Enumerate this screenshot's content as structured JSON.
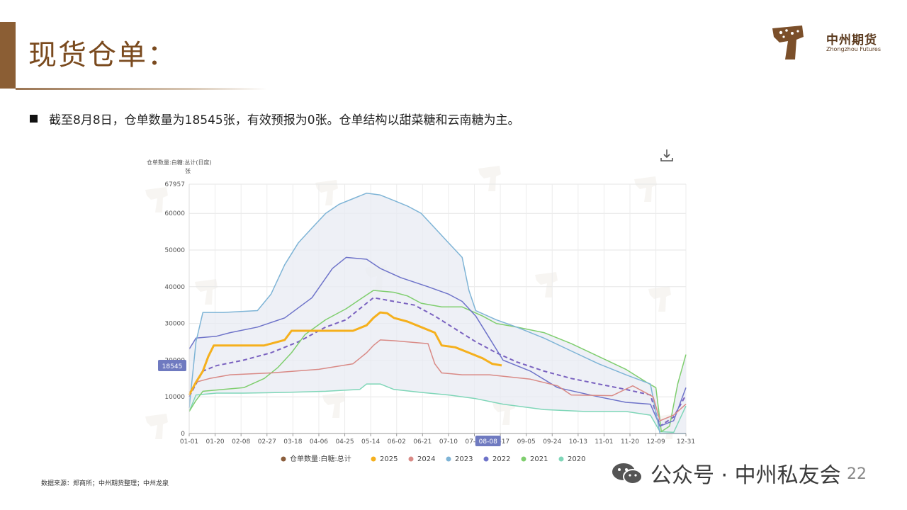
{
  "header": {
    "title": "现货仓单：",
    "logo_cn": "中州期货",
    "logo_en": "Zhongzhou Futures"
  },
  "summary": {
    "text": "截至8月8日，仓单数量为18545张，有效预报为0张。仓单结构以甜菜糖和云南糖为主。"
  },
  "footer": {
    "source": "数据来源：郑商所；中州期货整理；中州龙泉",
    "watermark": "公众号 · 中州私友会",
    "page_number": "22"
  },
  "chart_data": {
    "type": "line",
    "title": "仓单数量:白糖:总计(日度)",
    "ylabel": "张",
    "ylim": [
      0,
      67957
    ],
    "yticks": [
      0,
      10000,
      20000,
      30000,
      40000,
      50000,
      60000,
      67957
    ],
    "xticks": [
      "01-01",
      "01-20",
      "02-08",
      "02-27",
      "03-18",
      "04-06",
      "04-25",
      "05-14",
      "06-02",
      "06-21",
      "07-10",
      "07-29",
      "08-17",
      "09-05",
      "09-24",
      "10-13",
      "11-01",
      "11-20",
      "12-09",
      "12-31"
    ],
    "x_highlight": "08-08",
    "y_highlight": 18545,
    "x_domain_days": [
      0,
      364
    ],
    "legend_position": "bottom",
    "legend_label": "仓单数量:白糖:总计",
    "band": {
      "color": "#e8ebf3"
    },
    "series": [
      {
        "name": "2025",
        "color": "#f5b01d",
        "width": 3,
        "dash": "",
        "points": [
          [
            0,
            10500
          ],
          [
            5,
            14000
          ],
          [
            10,
            17000
          ],
          [
            14,
            21000
          ],
          [
            18,
            24000
          ],
          [
            30,
            24000
          ],
          [
            55,
            24000
          ],
          [
            70,
            25500
          ],
          [
            75,
            28000
          ],
          [
            95,
            28000
          ],
          [
            120,
            28000
          ],
          [
            130,
            29500
          ],
          [
            135,
            31500
          ],
          [
            140,
            33000
          ],
          [
            145,
            32800
          ],
          [
            150,
            31500
          ],
          [
            160,
            30500
          ],
          [
            170,
            29000
          ],
          [
            180,
            27500
          ],
          [
            185,
            24000
          ],
          [
            195,
            23500
          ],
          [
            205,
            22000
          ],
          [
            215,
            20500
          ],
          [
            222,
            19000
          ],
          [
            229,
            18545
          ]
        ]
      },
      {
        "name": "2024",
        "color": "#d98a86",
        "width": 1.5,
        "dash": "",
        "points": [
          [
            0,
            11000
          ],
          [
            5,
            14000
          ],
          [
            15,
            15000
          ],
          [
            30,
            16000
          ],
          [
            60,
            16500
          ],
          [
            95,
            17500
          ],
          [
            120,
            19000
          ],
          [
            130,
            22000
          ],
          [
            135,
            24000
          ],
          [
            140,
            25500
          ],
          [
            150,
            25300
          ],
          [
            165,
            24800
          ],
          [
            175,
            24500
          ],
          [
            180,
            19000
          ],
          [
            185,
            16500
          ],
          [
            200,
            16000
          ],
          [
            220,
            16000
          ],
          [
            250,
            14800
          ],
          [
            270,
            13000
          ],
          [
            280,
            10500
          ],
          [
            310,
            10300
          ],
          [
            325,
            13000
          ],
          [
            340,
            10000
          ],
          [
            345,
            3500
          ],
          [
            355,
            5000
          ],
          [
            364,
            8000
          ]
        ]
      },
      {
        "name": "2023",
        "color": "#7eb4d6",
        "width": 1.5,
        "dash": "",
        "points": [
          [
            0,
            7000
          ],
          [
            5,
            25000
          ],
          [
            10,
            33000
          ],
          [
            25,
            33000
          ],
          [
            50,
            33500
          ],
          [
            60,
            38000
          ],
          [
            70,
            46000
          ],
          [
            80,
            52000
          ],
          [
            90,
            56000
          ],
          [
            100,
            60000
          ],
          [
            110,
            62500
          ],
          [
            120,
            64000
          ],
          [
            130,
            65500
          ],
          [
            140,
            65000
          ],
          [
            150,
            63500
          ],
          [
            160,
            62000
          ],
          [
            170,
            60000
          ],
          [
            180,
            56000
          ],
          [
            190,
            52000
          ],
          [
            200,
            48000
          ],
          [
            205,
            39000
          ],
          [
            210,
            33500
          ],
          [
            225,
            31000
          ],
          [
            240,
            29000
          ],
          [
            260,
            26000
          ],
          [
            280,
            22500
          ],
          [
            300,
            19000
          ],
          [
            320,
            16000
          ],
          [
            338,
            13500
          ],
          [
            345,
            0
          ],
          [
            364,
            0
          ]
        ]
      },
      {
        "name": "2022",
        "color": "#6e73c9",
        "width": 1.5,
        "dash": "",
        "points": [
          [
            0,
            23000
          ],
          [
            5,
            26000
          ],
          [
            20,
            26500
          ],
          [
            30,
            27500
          ],
          [
            50,
            29000
          ],
          [
            70,
            31500
          ],
          [
            90,
            37000
          ],
          [
            105,
            45000
          ],
          [
            115,
            48000
          ],
          [
            130,
            47500
          ],
          [
            140,
            45000
          ],
          [
            155,
            42500
          ],
          [
            175,
            40000
          ],
          [
            190,
            38000
          ],
          [
            200,
            36000
          ],
          [
            210,
            32000
          ],
          [
            220,
            26000
          ],
          [
            230,
            20000
          ],
          [
            250,
            17000
          ],
          [
            270,
            12500
          ],
          [
            300,
            10000
          ],
          [
            320,
            8500
          ],
          [
            338,
            8000
          ],
          [
            345,
            2000
          ],
          [
            355,
            3500
          ],
          [
            364,
            12500
          ]
        ]
      },
      {
        "name": "2021",
        "color": "#7fce6e",
        "width": 1.5,
        "dash": "",
        "points": [
          [
            0,
            6000
          ],
          [
            5,
            9000
          ],
          [
            10,
            11500
          ],
          [
            25,
            12000
          ],
          [
            40,
            12500
          ],
          [
            55,
            15000
          ],
          [
            65,
            18000
          ],
          [
            75,
            22000
          ],
          [
            85,
            27000
          ],
          [
            100,
            31000
          ],
          [
            115,
            34000
          ],
          [
            125,
            36500
          ],
          [
            135,
            39000
          ],
          [
            150,
            38500
          ],
          [
            160,
            37500
          ],
          [
            170,
            35500
          ],
          [
            185,
            34500
          ],
          [
            200,
            34500
          ],
          [
            215,
            32000
          ],
          [
            225,
            30000
          ],
          [
            240,
            29000
          ],
          [
            260,
            27500
          ],
          [
            280,
            24500
          ],
          [
            300,
            21000
          ],
          [
            320,
            17500
          ],
          [
            335,
            14000
          ],
          [
            342,
            12500
          ],
          [
            346,
            500
          ],
          [
            352,
            2000
          ],
          [
            358,
            13500
          ],
          [
            364,
            21500
          ]
        ]
      },
      {
        "name": "2020",
        "color": "#7fd6b8",
        "width": 1.5,
        "dash": "",
        "points": [
          [
            0,
            6000
          ],
          [
            5,
            10500
          ],
          [
            20,
            11000
          ],
          [
            40,
            11000
          ],
          [
            70,
            11200
          ],
          [
            100,
            11500
          ],
          [
            125,
            12000
          ],
          [
            130,
            13500
          ],
          [
            140,
            13500
          ],
          [
            150,
            12000
          ],
          [
            170,
            11200
          ],
          [
            190,
            10500
          ],
          [
            210,
            9500
          ],
          [
            230,
            8000
          ],
          [
            260,
            6500
          ],
          [
            290,
            6000
          ],
          [
            320,
            6000
          ],
          [
            338,
            5000
          ],
          [
            345,
            500
          ],
          [
            355,
            300
          ],
          [
            364,
            7500
          ]
        ]
      },
      {
        "name": "",
        "color": "#7a62c0",
        "width": 2,
        "dash": "6,4",
        "points": [
          [
            0,
            10000
          ],
          [
            10,
            17000
          ],
          [
            20,
            18500
          ],
          [
            40,
            20000
          ],
          [
            60,
            22000
          ],
          [
            80,
            25000
          ],
          [
            100,
            29000
          ],
          [
            115,
            31000
          ],
          [
            125,
            34000
          ],
          [
            135,
            37000
          ],
          [
            150,
            36000
          ],
          [
            165,
            35000
          ],
          [
            180,
            32000
          ],
          [
            195,
            28500
          ],
          [
            210,
            25000
          ],
          [
            225,
            22000
          ],
          [
            240,
            19500
          ],
          [
            260,
            17000
          ],
          [
            280,
            15000
          ],
          [
            300,
            13500
          ],
          [
            320,
            12000
          ],
          [
            338,
            10500
          ],
          [
            345,
            2000
          ],
          [
            355,
            4500
          ],
          [
            364,
            10500
          ]
        ]
      }
    ]
  }
}
